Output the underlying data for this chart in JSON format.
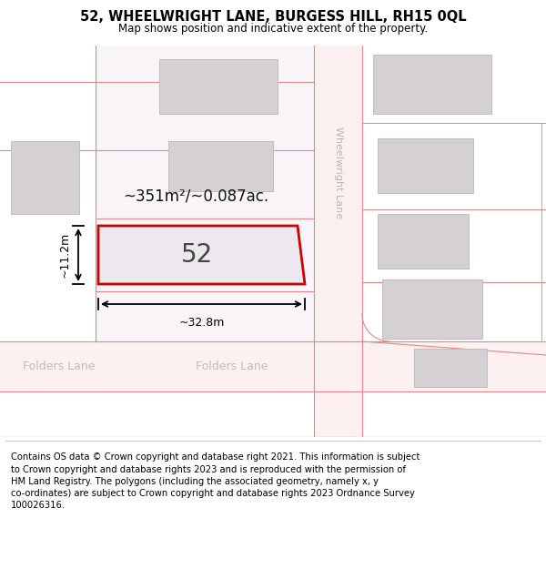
{
  "title": "52, WHEELWRIGHT LANE, BURGESS HILL, RH15 0QL",
  "subtitle": "Map shows position and indicative extent of the property.",
  "footer_text": "Contains OS data © Crown copyright and database right 2021. This information is subject\nto Crown copyright and database rights 2023 and is reproduced with the permission of\nHM Land Registry. The polygons (including the associated geometry, namely x, y\nco-ordinates) are subject to Crown copyright and database rights 2023 Ordnance Survey\n100026316.",
  "bg_color": "#ffffff",
  "road_fill": "#fdf0f0",
  "road_edge": "#e08888",
  "building_fill": "#d4d0d4",
  "building_edge": "#c0bcc0",
  "plot_fill": "#ede8ed",
  "plot_edge": "#cc0000",
  "area_text": "~351m²/~0.087ac.",
  "width_label": "~32.8m",
  "height_label": "~11.2m",
  "house_number": "52",
  "street_label": "Wheelwright Lane",
  "folders_lane_left": "Folders Lane",
  "folders_lane_center": "Folders Lane",
  "dim_color": "#000000",
  "label_color": "#c0bcbc",
  "title_fontsize": 10.5,
  "subtitle_fontsize": 8.5,
  "footer_fontsize": 7.2,
  "area_fontsize": 12,
  "num_fontsize": 20,
  "street_fontsize": 8,
  "lane_fontsize": 9
}
